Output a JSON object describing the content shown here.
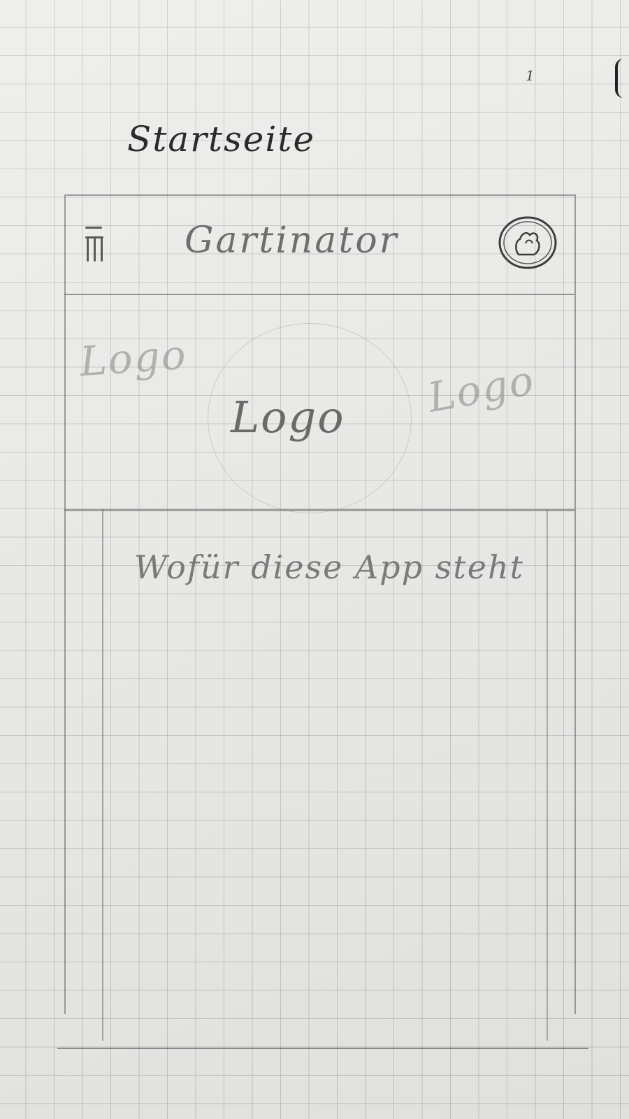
{
  "page_number": "1",
  "page_title": "Startseite",
  "header": {
    "menu_icon": "hamburger-menu-icon",
    "app_title": "Gartinator",
    "account_icon": "account-icon"
  },
  "logo_banner": {
    "logos": [
      "Logo",
      "Logo",
      "Logo"
    ]
  },
  "content": {
    "about_text": "Wofür diese App steht"
  }
}
